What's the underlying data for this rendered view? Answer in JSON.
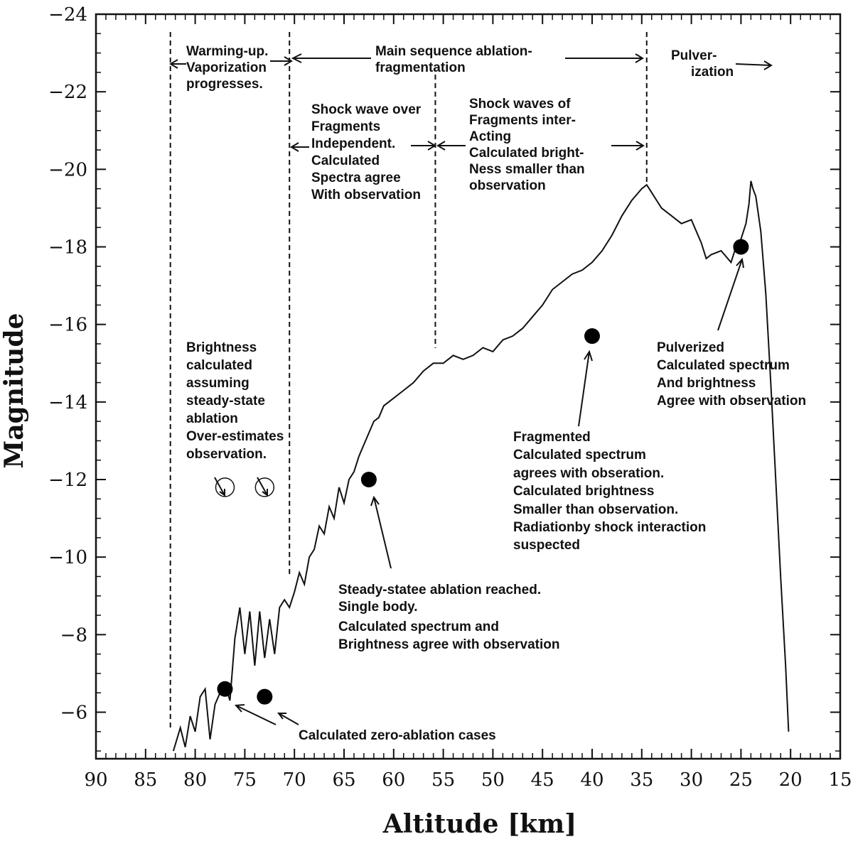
{
  "chart_data": {
    "type": "line",
    "xlabel": "Altitude [km]",
    "ylabel": "Magnitude",
    "xlim": [
      90,
      15
    ],
    "ylim": [
      -4.8,
      -24
    ],
    "x_ticks": [
      90,
      85,
      80,
      75,
      70,
      65,
      60,
      55,
      50,
      45,
      40,
      35,
      30,
      25,
      20,
      15
    ],
    "y_ticks": [
      -6,
      -8,
      -10,
      -12,
      -14,
      -16,
      -18,
      -20,
      -22,
      -24
    ],
    "x_tick_labels": [
      "90",
      "85",
      "80",
      "75",
      "70",
      "65",
      "60",
      "55",
      "50",
      "45",
      "40",
      "35",
      "30",
      "25",
      "20",
      "15"
    ],
    "y_tick_labels": [
      "−6",
      "−8",
      "−10",
      "−12",
      "−14",
      "−16",
      "−18",
      "−20",
      "−22",
      "−24"
    ],
    "series": [
      {
        "line_color": "#111111",
        "x": [
          82.2,
          81.5,
          81.0,
          80.5,
          80.0,
          79.5,
          79.0,
          78.5,
          78.0,
          77.5,
          77.0,
          76.5,
          76.0,
          75.5,
          75.0,
          74.5,
          74.0,
          73.5,
          73.0,
          72.5,
          72.0,
          71.5,
          71.0,
          70.5,
          70.0,
          69.5,
          69.0,
          68.5,
          68.0,
          67.5,
          67.0,
          66.5,
          66.0,
          65.5,
          65.0,
          64.5,
          64.0,
          63.5,
          63.0,
          62.5,
          62.0,
          61.5,
          61.0,
          60.5,
          60.0,
          59.0,
          58.0,
          57.0,
          56.0,
          55.0,
          54.0,
          53.0,
          52.0,
          51.0,
          50.0,
          49.0,
          48.0,
          47.0,
          46.0,
          45.0,
          44.0,
          43.0,
          42.0,
          41.0,
          40.0,
          39.0,
          38.0,
          37.0,
          36.0,
          35.0,
          34.5,
          34.0,
          33.5,
          33.0,
          32.0,
          31.0,
          30.0,
          29.0,
          28.5,
          28.0,
          27.0,
          26.0,
          25.5,
          25.0,
          24.5,
          24.2,
          24.0,
          23.8,
          23.5,
          23.0,
          22.5,
          22.0,
          21.5,
          21.0,
          20.5,
          20.2
        ],
        "y": [
          -5.0,
          -5.6,
          -5.1,
          -5.9,
          -5.5,
          -6.4,
          -6.6,
          -5.3,
          -6.2,
          -6.5,
          -6.7,
          -6.3,
          -7.9,
          -8.7,
          -7.5,
          -8.6,
          -7.2,
          -8.6,
          -7.4,
          -8.4,
          -7.5,
          -8.7,
          -8.9,
          -8.7,
          -9.1,
          -9.6,
          -9.3,
          -10.0,
          -10.2,
          -10.8,
          -10.6,
          -11.3,
          -11.0,
          -11.8,
          -11.4,
          -12.0,
          -12.2,
          -12.6,
          -12.9,
          -13.2,
          -13.5,
          -13.6,
          -13.9,
          -14.0,
          -14.1,
          -14.3,
          -14.5,
          -14.8,
          -15.0,
          -15.0,
          -15.2,
          -15.1,
          -15.2,
          -15.4,
          -15.3,
          -15.6,
          -15.7,
          -15.9,
          -16.2,
          -16.5,
          -16.9,
          -17.1,
          -17.3,
          -17.4,
          -17.6,
          -17.9,
          -18.3,
          -18.8,
          -19.2,
          -19.5,
          -19.6,
          -19.4,
          -19.2,
          -19.0,
          -18.8,
          -18.6,
          -18.7,
          -18.1,
          -17.7,
          -17.8,
          -17.9,
          -17.6,
          -18.0,
          -18.2,
          -18.6,
          -19.1,
          -19.7,
          -19.5,
          -19.3,
          -18.4,
          -16.8,
          -14.5,
          -12.0,
          -9.5,
          -7.2,
          -5.5
        ]
      }
    ],
    "phase_lines_x": [
      82.5,
      70.5,
      55.8,
      34.5
    ],
    "filled_points": [
      {
        "x": 77.0,
        "y": -6.6
      },
      {
        "x": 73.0,
        "y": -6.4
      },
      {
        "x": 62.5,
        "y": -12.0
      },
      {
        "x": 40.0,
        "y": -15.7
      },
      {
        "x": 25.0,
        "y": -18.0
      }
    ],
    "open_points": [
      {
        "x": 77.0,
        "y": -11.8
      },
      {
        "x": 73.0,
        "y": -11.8
      }
    ],
    "annotations": {
      "warming": [
        "Warming-up.",
        "Vaporization",
        "progresses."
      ],
      "main_seq": [
        "Main sequence ablation-",
        "fragmentation"
      ],
      "pulver": [
        "Pulver-",
        "ization"
      ],
      "shock_indep": [
        "Shock wave over",
        "Fragments",
        "Independent.",
        "Calculated",
        "Spectra agree",
        "With observation"
      ],
      "shock_inter": [
        "Shock waves of",
        "Fragments inter-",
        "Acting",
        "Calculated bright-",
        "Ness smaller than",
        "observation"
      ],
      "brightness": [
        "Brightness",
        "calculated",
        "assuming",
        "steady-state",
        "ablation",
        "Over-estimates",
        "observation."
      ],
      "fragmented": [
        "Fragmented",
        "Calculated spectrum",
        "agrees with obseration.",
        "Calculated brightness",
        "Smaller than observation.",
        "Radiationby shock interaction",
        "suspected"
      ],
      "pulverized": [
        "Pulverized",
        "Calculated spectrum",
        "And brightness",
        "Agree with observation"
      ],
      "steady": [
        "Steady-statee ablation reached.",
        "Single body.",
        "Calculated spectrum and",
        "Brightness agree with observation"
      ],
      "zero": [
        "Calculated zero-ablation cases"
      ]
    }
  }
}
